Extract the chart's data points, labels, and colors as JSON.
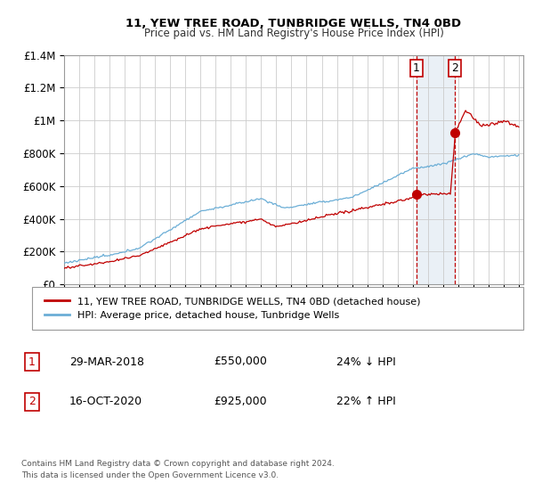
{
  "title1": "11, YEW TREE ROAD, TUNBRIDGE WELLS, TN4 0BD",
  "title2": "Price paid vs. HM Land Registry's House Price Index (HPI)",
  "background_color": "#ffffff",
  "plot_bg_color": "#ffffff",
  "grid_color": "#cccccc",
  "hpi_color": "#6baed6",
  "price_color": "#c00000",
  "shade_color": "#dce6f1",
  "transaction1_x": 2018.24,
  "transaction1_price": 550000,
  "transaction2_x": 2020.79,
  "transaction2_price": 925000,
  "legend_line1": "11, YEW TREE ROAD, TUNBRIDGE WELLS, TN4 0BD (detached house)",
  "legend_line2": "HPI: Average price, detached house, Tunbridge Wells",
  "footnote": "Contains HM Land Registry data © Crown copyright and database right 2024.\nThis data is licensed under the Open Government Licence v3.0.",
  "table_row1_num": "1",
  "table_row1_date": "29-MAR-2018",
  "table_row1_price": "£550,000",
  "table_row1_hpi": "24% ↓ HPI",
  "table_row2_num": "2",
  "table_row2_date": "16-OCT-2020",
  "table_row2_price": "£925,000",
  "table_row2_hpi": "22% ↑ HPI",
  "ylim": [
    0,
    1400000
  ],
  "xlim_left": 1995,
  "xlim_right": 2025.3,
  "yticks": [
    0,
    200000,
    400000,
    600000,
    800000,
    1000000,
    1200000,
    1400000
  ],
  "ytick_labels": [
    "£0",
    "£200K",
    "£400K",
    "£600K",
    "£800K",
    "£1M",
    "£1.2M",
    "£1.4M"
  ]
}
